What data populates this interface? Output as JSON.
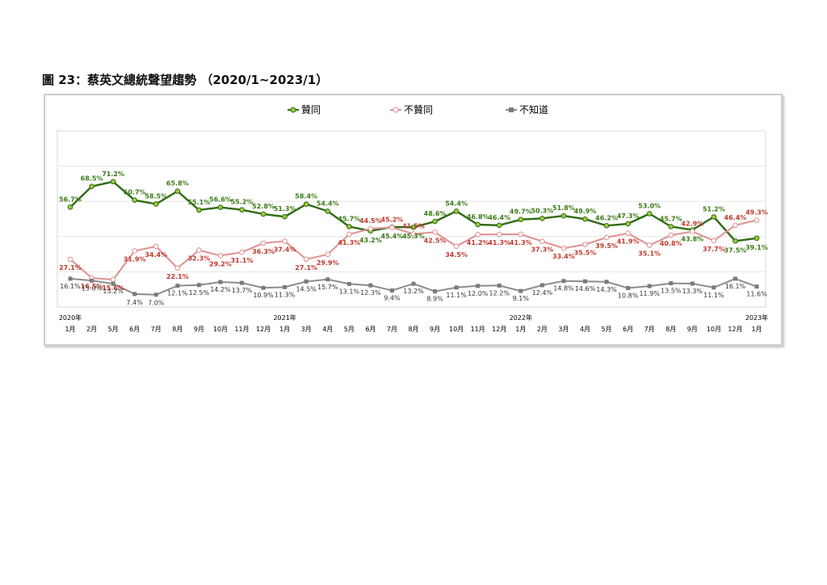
{
  "page": {
    "title": "圖 23：蔡英文總統聲望趨勢 （2020/1~2023/1）"
  },
  "chart_data": {
    "type": "line",
    "categories": [
      "1月",
      "2月",
      "5月",
      "6月",
      "7月",
      "8月",
      "9月",
      "10月",
      "11月",
      "12月",
      "1月",
      "3月",
      "4月",
      "5月",
      "6月",
      "7月",
      "8月",
      "9月",
      "10月",
      "11月",
      "12月",
      "1月",
      "2月",
      "3月",
      "4月",
      "5月",
      "6月",
      "7月",
      "8月",
      "9月",
      "10月",
      "12月",
      "1月"
    ],
    "year_labels": [
      {
        "index": 0,
        "label": "2020年"
      },
      {
        "index": 10,
        "label": "2021年"
      },
      {
        "index": 21,
        "label": "2022年"
      },
      {
        "index": 32,
        "label": "2023年"
      }
    ],
    "ylim": [
      0,
      100
    ],
    "grid": true,
    "legend_position": "top",
    "series": [
      {
        "name": "贊同",
        "color": "#2f6b12",
        "marker_color": "#9ccc3c",
        "label_color": "#3b7a16",
        "values": [
          56.7,
          68.5,
          71.2,
          60.7,
          58.5,
          65.8,
          55.1,
          56.6,
          55.2,
          52.8,
          51.3,
          58.4,
          54.4,
          45.7,
          43.2,
          45.4,
          45.3,
          48.6,
          54.4,
          46.8,
          46.4,
          49.7,
          50.3,
          51.8,
          49.9,
          46.2,
          47.3,
          53.0,
          45.7,
          43.8,
          51.2,
          37.5,
          39.1
        ],
        "labels": [
          "56.7%",
          "68.5%",
          "71.2%",
          "60.7%",
          "58.5%",
          "65.8%",
          "55.1%",
          "56.6%",
          "55.2%",
          "52.8%",
          "51.3%",
          "58.4%",
          "54.4%",
          "45.7%",
          "43.2%",
          "45.4%",
          "45.3%",
          "48.6%",
          "54.4%",
          "46.8%",
          "46.4%",
          "49.7%",
          "50.3%",
          "51.8%",
          "49.9%",
          "46.2%",
          "47.3%",
          "53.0%",
          "45.7%",
          "43.8%",
          "51.2%",
          "37.5%",
          "39.1%"
        ]
      },
      {
        "name": "不贊同",
        "color": "#e09090",
        "marker_color": "#ffffff",
        "label_color": "#c0392b",
        "values": [
          27.1,
          16.5,
          15.6,
          31.9,
          34.4,
          22.1,
          32.3,
          29.2,
          31.1,
          36.3,
          37.4,
          27.1,
          29.9,
          41.3,
          44.5,
          45.2,
          41.5,
          42.5,
          34.5,
          41.2,
          41.3,
          41.3,
          37.3,
          33.4,
          35.5,
          39.5,
          41.9,
          35.1,
          40.8,
          42.9,
          37.7,
          46.4,
          49.3
        ],
        "labels": [
          "27.1%",
          "16.5%",
          "15.6%",
          "31.9%",
          "34.4%",
          "22.1%",
          "32.3%",
          "29.2%",
          "31.1%",
          "36.3%",
          "37.4%",
          "27.1%",
          "29.9%",
          "41.3%",
          "44.5%",
          "45.2%",
          "41.5%",
          "42.5%",
          "34.5%",
          "41.2%",
          "41.3%",
          "41.3%",
          "37.3%",
          "33.4%",
          "35.5%",
          "39.5%",
          "41.9%",
          "35.1%",
          "40.8%",
          "42.9%",
          "37.7%",
          "46.4%",
          "49.3%"
        ]
      },
      {
        "name": "不知道",
        "color": "#8c8c8c",
        "marker_color": "#7a7a7a",
        "label_color": "#333333",
        "values": [
          16.1,
          15.0,
          13.2,
          7.4,
          7.0,
          12.1,
          12.5,
          14.2,
          13.7,
          10.9,
          11.3,
          14.5,
          15.7,
          13.1,
          12.3,
          9.4,
          13.2,
          8.9,
          11.1,
          12.0,
          12.2,
          9.1,
          12.4,
          14.8,
          14.6,
          14.3,
          10.8,
          11.9,
          13.5,
          13.3,
          11.1,
          16.1,
          11.6
        ],
        "labels": [
          "16.1%",
          "15.0%",
          "13.2%",
          "7.4%",
          "7.0%",
          "12.1%",
          "12.5%",
          "14.2%",
          "13.7%",
          "10.9%",
          "11.3%",
          "14.5%",
          "15.7%",
          "13.1%",
          "12.3%",
          "9.4%",
          "13.2%",
          "8.9%",
          "11.1%",
          "12.0%",
          "12.2%",
          "9.1%",
          "12.4%",
          "14.8%",
          "14.6%",
          "14.3%",
          "10.8%",
          "11.9%",
          "13.5%",
          "13.3%",
          "11.1%",
          "16.1%",
          "11.6%"
        ]
      }
    ]
  }
}
